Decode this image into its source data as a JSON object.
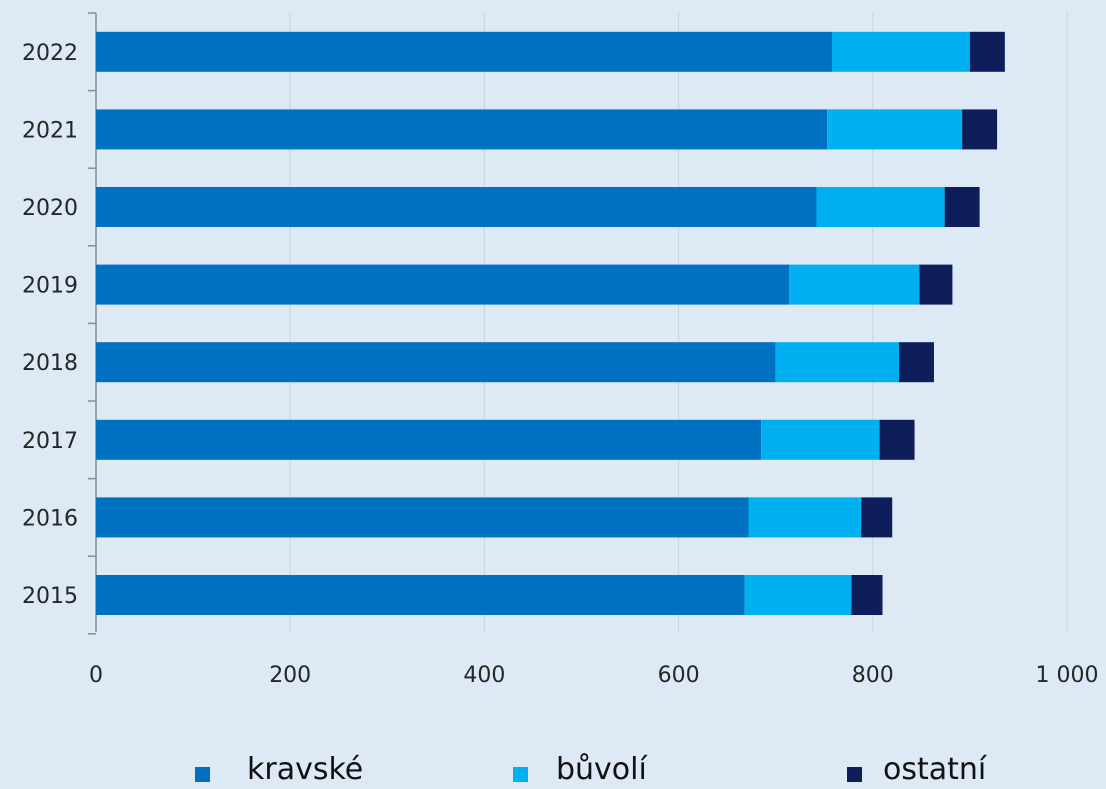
{
  "chart_data": {
    "type": "bar",
    "orientation": "horizontal",
    "stacked": true,
    "categories": [
      "2022",
      "2021",
      "2020",
      "2019",
      "2018",
      "2017",
      "2016",
      "2015"
    ],
    "series": [
      {
        "name": "kravské",
        "color": "#0070c0",
        "values": [
          758,
          753,
          742,
          714,
          700,
          685,
          672,
          668
        ]
      },
      {
        "name": "bůvolí",
        "color": "#00b0f0",
        "values": [
          142,
          139,
          132,
          134,
          127,
          122,
          116,
          110
        ]
      },
      {
        "name": "ostatní",
        "color": "#0d1e5a",
        "values": [
          36,
          36,
          36,
          34,
          36,
          36,
          32,
          32
        ]
      }
    ],
    "xlim": [
      0,
      1000
    ],
    "x_ticks": [
      0,
      200,
      400,
      600,
      800,
      1000
    ],
    "x_tick_labels": [
      "0",
      "200",
      "400",
      "600",
      "800",
      "1 000"
    ],
    "grid": "vertical",
    "legend_position": "bottom",
    "title": "",
    "xlabel": "",
    "ylabel": ""
  }
}
